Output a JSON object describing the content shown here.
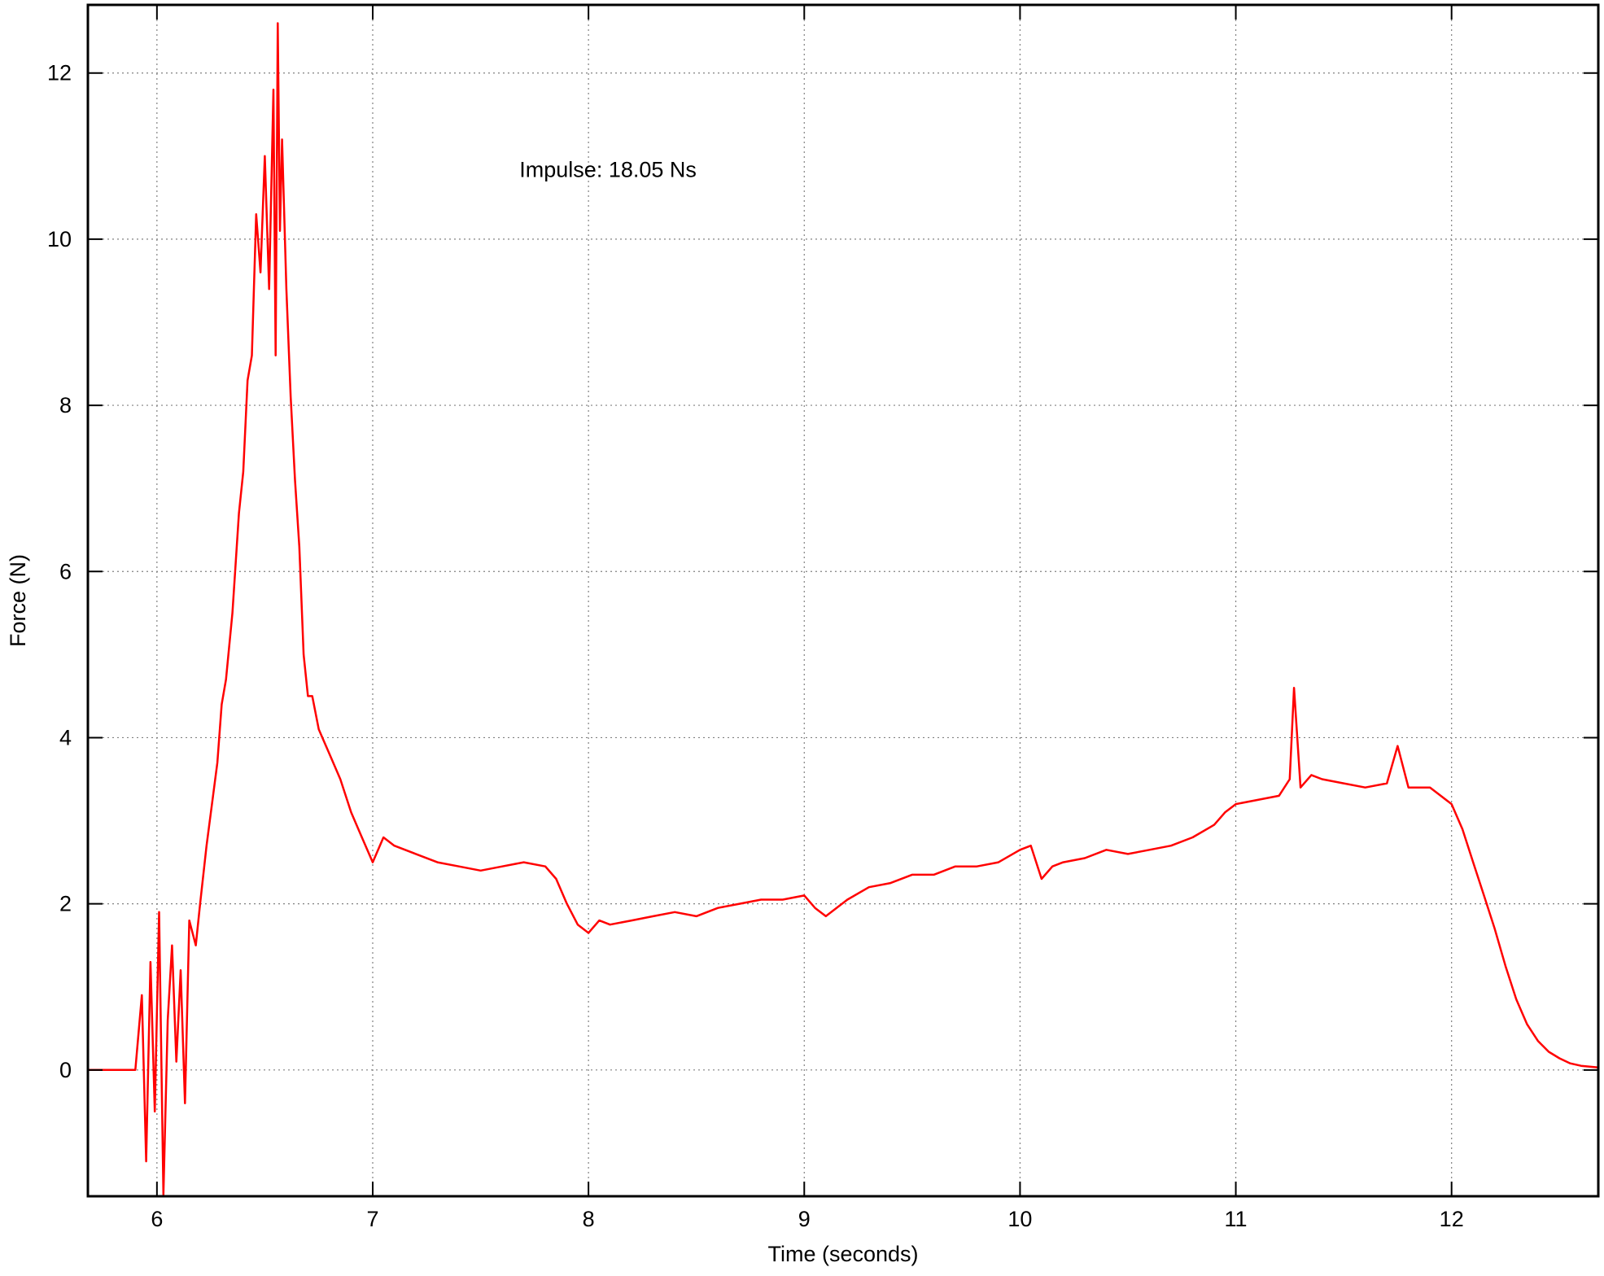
{
  "chart_data": {
    "type": "line",
    "title": "",
    "xlabel": "Time (seconds)",
    "ylabel": "Force (N)",
    "xlim": [
      5.68,
      12.68
    ],
    "ylim": [
      -1.52,
      12.82
    ],
    "xticks": [
      6,
      7,
      8,
      9,
      10,
      11,
      12
    ],
    "yticks": [
      0,
      2,
      4,
      6,
      8,
      10,
      12
    ],
    "grid": true,
    "grid_style": "dotted",
    "legend": "none",
    "annotations": [
      {
        "text": "Impulse: 18.05 Ns",
        "x": 7.68,
        "y": 10.75
      }
    ],
    "series": [
      {
        "color": "#ff0000",
        "x": [
          5.68,
          5.8,
          5.9,
          5.93,
          5.95,
          5.97,
          5.99,
          6.01,
          6.03,
          6.05,
          6.07,
          6.09,
          6.11,
          6.13,
          6.15,
          6.18,
          6.2,
          6.23,
          6.26,
          6.28,
          6.3,
          6.32,
          6.35,
          6.38,
          6.4,
          6.42,
          6.44,
          6.46,
          6.48,
          6.5,
          6.52,
          6.54,
          6.55,
          6.56,
          6.57,
          6.58,
          6.6,
          6.62,
          6.64,
          6.66,
          6.68,
          6.7,
          6.72,
          6.75,
          6.8,
          6.85,
          6.9,
          6.95,
          7.0,
          7.05,
          7.1,
          7.2,
          7.3,
          7.4,
          7.5,
          7.6,
          7.7,
          7.8,
          7.85,
          7.9,
          7.95,
          8.0,
          8.05,
          8.1,
          8.2,
          8.3,
          8.4,
          8.5,
          8.6,
          8.7,
          8.8,
          8.9,
          9.0,
          9.05,
          9.1,
          9.2,
          9.3,
          9.4,
          9.5,
          9.6,
          9.7,
          9.8,
          9.9,
          10.0,
          10.05,
          10.1,
          10.15,
          10.2,
          10.3,
          10.4,
          10.5,
          10.6,
          10.7,
          10.8,
          10.9,
          10.95,
          11.0,
          11.1,
          11.2,
          11.25,
          11.27,
          11.3,
          11.35,
          11.4,
          11.5,
          11.6,
          11.7,
          11.75,
          11.8,
          11.9,
          11.95,
          12.0,
          12.05,
          12.1,
          12.15,
          12.2,
          12.25,
          12.3,
          12.35,
          12.4,
          12.45,
          12.5,
          12.55,
          12.6,
          12.68
        ],
        "y": [
          0.0,
          0.0,
          0.0,
          0.9,
          -1.1,
          1.3,
          -0.5,
          1.9,
          -1.5,
          0.6,
          1.5,
          0.1,
          1.2,
          -0.4,
          1.8,
          1.5,
          2.0,
          2.7,
          3.3,
          3.7,
          4.4,
          4.7,
          5.5,
          6.7,
          7.2,
          8.3,
          8.6,
          10.3,
          9.6,
          11.0,
          9.4,
          11.8,
          8.6,
          12.6,
          10.1,
          11.2,
          9.4,
          8.1,
          7.1,
          6.3,
          5.0,
          4.5,
          4.5,
          4.1,
          3.8,
          3.5,
          3.1,
          2.8,
          2.5,
          2.8,
          2.7,
          2.6,
          2.5,
          2.45,
          2.4,
          2.45,
          2.5,
          2.45,
          2.3,
          2.0,
          1.75,
          1.65,
          1.8,
          1.75,
          1.8,
          1.85,
          1.9,
          1.85,
          1.95,
          2.0,
          2.05,
          2.05,
          2.1,
          1.95,
          1.85,
          2.05,
          2.2,
          2.25,
          2.35,
          2.35,
          2.45,
          2.45,
          2.5,
          2.65,
          2.7,
          2.3,
          2.45,
          2.5,
          2.55,
          2.65,
          2.6,
          2.65,
          2.7,
          2.8,
          2.95,
          3.1,
          3.2,
          3.25,
          3.3,
          3.5,
          4.6,
          3.4,
          3.55,
          3.5,
          3.45,
          3.4,
          3.45,
          3.9,
          3.4,
          3.4,
          3.3,
          3.2,
          2.9,
          2.5,
          2.1,
          1.7,
          1.25,
          0.85,
          0.55,
          0.35,
          0.22,
          0.14,
          0.08,
          0.05,
          0.03
        ]
      }
    ]
  }
}
